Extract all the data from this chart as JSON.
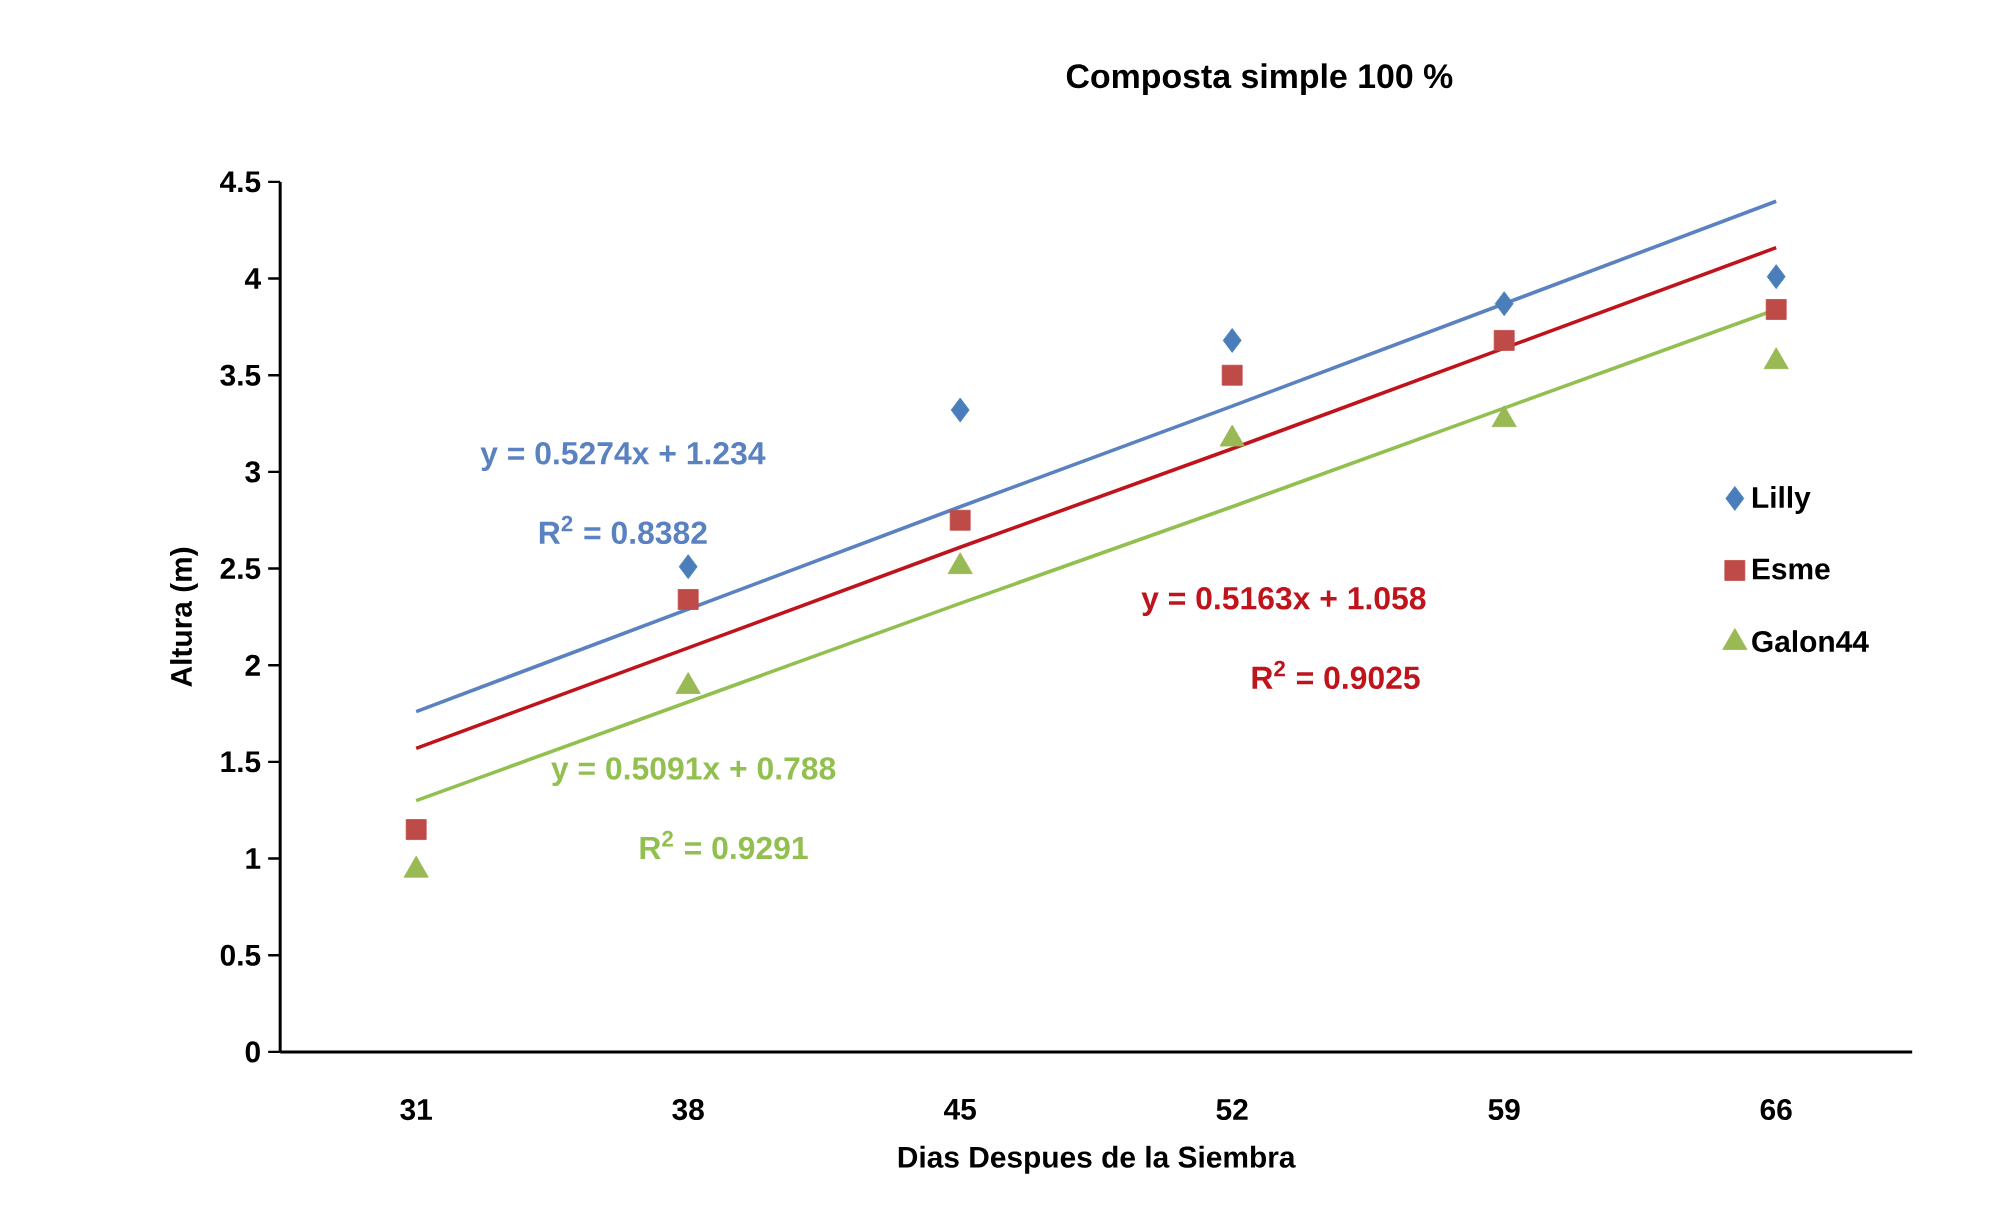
{
  "chart_data": {
    "type": "scatter",
    "title": "Composta simple 100 %",
    "xlabel": "Dias Despues de la Siembra",
    "ylabel": "Altura (m)",
    "categories": [
      "31",
      "38",
      "45",
      "52",
      "59",
      "66"
    ],
    "series": [
      {
        "name": "Lilly",
        "marker": "diamond",
        "color": "#4a7ebb",
        "values": [
          null,
          2.51,
          3.32,
          3.68,
          3.87,
          4.01
        ]
      },
      {
        "name": "Esme",
        "marker": "square",
        "color": "#be4b48",
        "values": [
          1.15,
          2.34,
          2.75,
          3.5,
          3.68,
          3.84
        ]
      },
      {
        "name": "Galon44",
        "marker": "triangle",
        "color": "#98b954",
        "values": [
          0.94,
          1.89,
          2.51,
          3.17,
          3.27,
          3.57
        ]
      },
      {
        "type": "line",
        "marker": "none",
        "color": "#5b82c0",
        "values": [
          1.76,
          2.29,
          2.82,
          3.34,
          3.87,
          4.4
        ]
      },
      {
        "type": "line",
        "marker": "none",
        "color": "#c0141c",
        "values": [
          1.57,
          2.09,
          2.61,
          3.12,
          3.64,
          4.16
        ]
      },
      {
        "type": "line",
        "marker": "none",
        "color": "#92c050",
        "values": [
          1.3,
          1.81,
          2.32,
          2.82,
          3.33,
          3.84
        ]
      }
    ],
    "annotations": [
      "y = 0.5274x + 1.234",
      "R$^{2}$ = 0.8382",
      "y = 0.5163x + 1.058",
      "R$^{2}$ = 0.9025",
      "y = 0.5091x + 0.788",
      "R$^{2}$ = 0.9291"
    ],
    "ylim": [
      0,
      4.5
    ],
    "yticks": [
      0,
      0.5,
      1,
      1.5,
      2,
      2.5,
      3,
      3.5,
      4,
      4.5
    ],
    "grid": false,
    "legend": "right"
  }
}
